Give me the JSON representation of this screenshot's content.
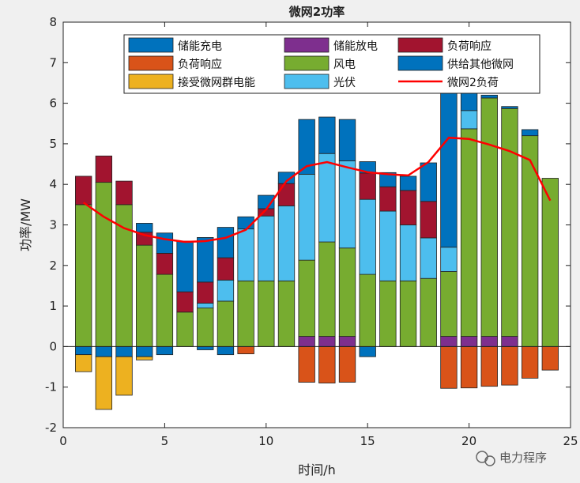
{
  "chart_data": {
    "type": "bar",
    "title": "微网2功率",
    "xlabel": "时间/h",
    "ylabel": "功率/MW",
    "xlim": [
      0,
      25
    ],
    "ylim": [
      -2,
      8
    ],
    "xticks": [
      "0",
      "5",
      "10",
      "15",
      "20",
      "25"
    ],
    "yticks": [
      "-2",
      "-1",
      "0",
      "1",
      "2",
      "3",
      "4",
      "5",
      "6",
      "7",
      "8"
    ],
    "grid": false,
    "legend_position": "top",
    "stacked": true,
    "x": [
      1,
      2,
      3,
      4,
      5,
      6,
      7,
      8,
      9,
      10,
      11,
      12,
      13,
      14,
      15,
      16,
      17,
      18,
      19,
      20,
      21,
      22,
      23,
      24
    ],
    "series": [
      {
        "name": "风电",
        "color": "#77ac30",
        "sign": "positive",
        "values": [
          3.5,
          4.05,
          3.5,
          2.5,
          1.78,
          0.85,
          0.95,
          1.12,
          1.62,
          1.62,
          1.62,
          1.88,
          2.33,
          2.18,
          1.78,
          1.62,
          1.62,
          1.68,
          1.6,
          5.12,
          5.88,
          5.62,
          5.2,
          4.15
        ]
      },
      {
        "name": "光伏",
        "color": "#4dbeee",
        "sign": "positive",
        "values": [
          0,
          0,
          0,
          0,
          0,
          0,
          0.12,
          0.52,
          1.28,
          1.6,
          1.85,
          2.12,
          2.18,
          2.15,
          1.85,
          1.72,
          1.38,
          1.0,
          0.6,
          0.45,
          0,
          0,
          0,
          0
        ]
      },
      {
        "name": "负荷响应",
        "color": "#a2142f",
        "sign": "positive",
        "values": [
          0.7,
          0.65,
          0.58,
          0.32,
          0.52,
          0.5,
          0.52,
          0.55,
          0,
          0.18,
          0.55,
          0,
          0,
          0,
          0.65,
          0.6,
          0.85,
          0.9,
          0,
          0,
          0,
          0,
          0,
          0
        ]
      },
      {
        "name": "储能放电",
        "color": "#7e2f8e",
        "sign": "positive",
        "values": [
          0,
          0,
          0,
          0,
          0,
          0,
          0,
          0,
          0,
          0,
          0,
          0,
          0,
          0,
          0,
          0,
          0,
          0,
          0,
          0,
          0,
          0,
          0,
          0
        ]
      },
      {
        "name": "接受微网群电能",
        "color": "#edb120",
        "sign": "positive",
        "values": [
          0,
          0,
          0,
          0,
          0,
          0,
          0,
          0,
          0,
          0,
          0,
          0,
          0,
          0,
          0,
          0,
          0,
          0,
          0,
          0,
          0,
          0,
          0,
          0
        ]
      },
      {
        "name": "储能充电",
        "color": "#0072bd",
        "sign": "negative",
        "values": [
          0.2,
          0.25,
          0.25,
          0.25,
          0.2,
          0,
          0.08,
          0.2,
          0,
          0,
          0,
          0,
          0,
          0,
          0.25,
          0,
          0,
          0,
          0,
          0,
          0,
          0,
          0,
          0
        ]
      },
      {
        "name": "接受微网群电能",
        "color": "#edb120",
        "sign": "negative",
        "values": [
          0.42,
          1.3,
          0.95,
          0.08,
          0,
          0,
          0,
          0,
          0,
          0,
          0,
          0,
          0,
          0,
          0,
          0,
          0,
          0,
          0,
          0,
          0,
          0,
          0,
          0
        ]
      },
      {
        "name": "负荷响应",
        "color": "#d95319",
        "sign": "negative",
        "values": [
          0,
          0,
          0,
          0,
          0,
          0,
          0,
          0,
          0.18,
          0,
          0,
          0.88,
          0.9,
          0.88,
          0,
          0,
          0,
          0,
          1.03,
          1.02,
          0.98,
          0.95,
          0.78,
          0.58
        ]
      },
      {
        "name": "储能充电",
        "color": "#0072bd",
        "sign": "positive_top",
        "values": [
          0,
          0,
          0,
          0.22,
          0.5,
          1.25,
          1.1,
          0.75,
          0.3,
          0.33,
          0.28,
          1.35,
          0.9,
          1.02,
          0.28,
          0.35,
          0.35,
          0.95,
          4.0,
          0.55,
          0.07,
          0.05,
          0.15,
          0
        ]
      },
      {
        "name": "储能放电",
        "color": "#7e2f8e",
        "sign": "base",
        "values": [
          0,
          0,
          0,
          0,
          0,
          0,
          0,
          0,
          0,
          0,
          0,
          0.25,
          0.25,
          0.25,
          0,
          0,
          0,
          0,
          0.25,
          0.25,
          0.25,
          0.25,
          0,
          0
        ]
      }
    ],
    "load_line": {
      "name": "微网2负荷",
      "color": "#ff0000",
      "x": [
        1,
        2,
        3,
        4,
        5,
        6,
        7,
        8,
        9,
        10,
        11,
        12,
        13,
        14,
        15,
        16,
        17,
        18,
        19,
        20,
        21,
        22,
        23,
        24
      ],
      "y": [
        3.55,
        3.2,
        2.92,
        2.75,
        2.65,
        2.58,
        2.6,
        2.68,
        2.88,
        3.38,
        4.08,
        4.45,
        4.55,
        4.42,
        4.3,
        4.25,
        4.22,
        4.55,
        5.15,
        5.12,
        4.98,
        4.82,
        4.6,
        3.6
      ]
    },
    "legend": [
      {
        "label": "储能充电",
        "color": "#0072bd",
        "kind": "patch"
      },
      {
        "label": "储能放电",
        "color": "#7e2f8e",
        "kind": "patch"
      },
      {
        "label": "负荷响应",
        "color": "#a2142f",
        "kind": "patch"
      },
      {
        "label": "负荷响应",
        "color": "#d95319",
        "kind": "patch"
      },
      {
        "label": "风电",
        "color": "#77ac30",
        "kind": "patch"
      },
      {
        "label": "供给其他微网",
        "color": "#0072bd",
        "kind": "patch"
      },
      {
        "label": "接受微网群电能",
        "color": "#edb120",
        "kind": "patch"
      },
      {
        "label": "光伏",
        "color": "#4dbeee",
        "kind": "patch"
      },
      {
        "label": "微网2负荷",
        "color": "#ff0000",
        "kind": "line"
      }
    ]
  },
  "watermark": {
    "text": "电力程序",
    "icon": "wechat-icon"
  }
}
